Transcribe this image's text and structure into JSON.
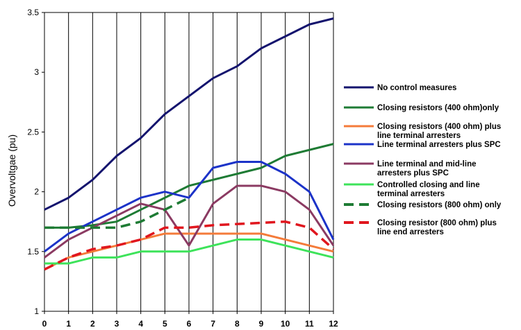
{
  "chart_data": {
    "type": "line",
    "ylabel": "Overvoltgae (pu)",
    "xlabel": "",
    "x": [
      0,
      1,
      2,
      3,
      4,
      5,
      6,
      7,
      8,
      9,
      10,
      11,
      12
    ],
    "xlim": [
      0,
      12
    ],
    "ylim": [
      1,
      3.5
    ],
    "yticks": [
      "1",
      "1.5",
      "2",
      "2.5",
      "3",
      "3.5"
    ],
    "xticks": [
      "0",
      "1",
      "2",
      "3",
      "4",
      "5",
      "6",
      "7",
      "8",
      "9",
      "10",
      "11",
      "12"
    ],
    "grid": "vertical",
    "legend_position": "right",
    "series": [
      {
        "name": "No control measures",
        "color": "#14146e",
        "dashed": false,
        "values": [
          1.85,
          1.95,
          2.1,
          2.3,
          2.45,
          2.65,
          2.8,
          2.95,
          3.05,
          3.2,
          3.3,
          3.4,
          3.45
        ]
      },
      {
        "name": "Closing resistors (400 ohm)only",
        "color": "#1e7b34",
        "dashed": false,
        "values": [
          1.7,
          1.7,
          1.72,
          1.75,
          1.85,
          1.95,
          2.05,
          2.1,
          2.15,
          2.2,
          2.3,
          2.35,
          2.4
        ]
      },
      {
        "name": "Closing resistors (400 ohm)  plus line terminal arresters",
        "color": "#f47b3a",
        "dashed": false,
        "values": [
          1.35,
          1.45,
          1.5,
          1.55,
          1.6,
          1.65,
          1.65,
          1.65,
          1.65,
          1.65,
          1.6,
          1.55,
          1.5
        ]
      },
      {
        "name": "Line terminal arresters plus SPC",
        "color": "#1c33c8",
        "dashed": false,
        "values": [
          1.5,
          1.65,
          1.75,
          1.85,
          1.95,
          2.0,
          1.95,
          2.2,
          2.25,
          2.25,
          2.15,
          2.0,
          1.6
        ]
      },
      {
        "name": "Line terminal and mid-line arresters plus SPC",
        "color": "#8b3a62",
        "dashed": false,
        "values": [
          1.45,
          1.6,
          1.7,
          1.8,
          1.9,
          1.85,
          1.55,
          1.9,
          2.05,
          2.05,
          2.0,
          1.85,
          1.55
        ]
      },
      {
        "name": "Controlled closing and line terminal arresters",
        "color": "#3de35a",
        "dashed": false,
        "values": [
          1.4,
          1.4,
          1.45,
          1.45,
          1.5,
          1.5,
          1.5,
          1.55,
          1.6,
          1.6,
          1.55,
          1.5,
          1.45
        ]
      },
      {
        "name": "Closing resistors (800 ohm) only",
        "color": "#1e7b34",
        "dashed": true,
        "values": [
          1.7,
          1.7,
          1.7,
          1.7,
          1.75,
          1.85,
          1.95,
          null,
          null,
          null,
          null,
          null,
          null
        ]
      },
      {
        "name": "Closing resistor (800 ohm) plus line end arresters",
        "color": "#e0161e",
        "dashed": true,
        "values": [
          1.35,
          1.45,
          1.52,
          1.55,
          1.6,
          1.7,
          1.7,
          1.72,
          1.73,
          1.74,
          1.75,
          1.7,
          1.52
        ]
      }
    ]
  }
}
